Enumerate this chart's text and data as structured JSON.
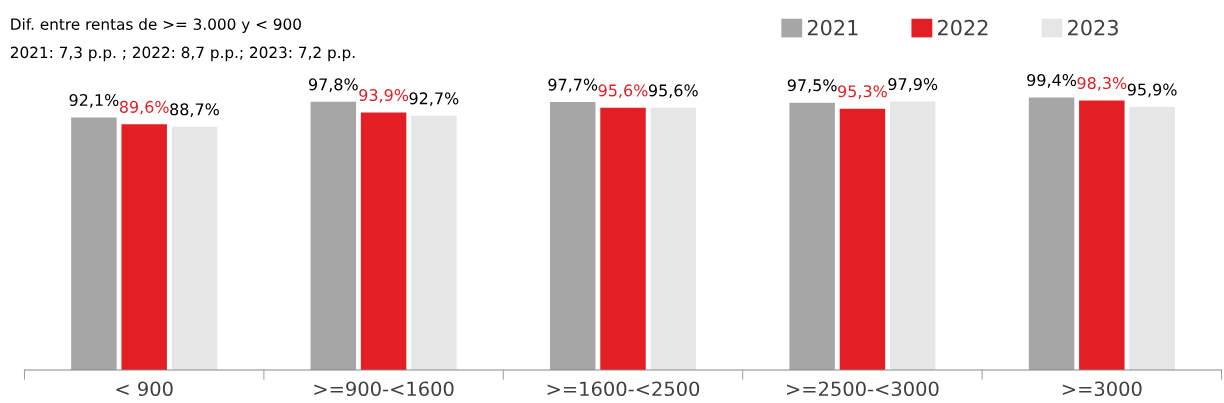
{
  "chart_data": {
    "type": "bar",
    "categories": [
      "< 900",
      ">=900-<1600",
      ">=1600-<2500",
      ">=2500-<3000",
      ">=3000"
    ],
    "series": [
      {
        "name": "2021",
        "color": "#a6a6a6",
        "values": [
          92.1,
          97.8,
          97.7,
          97.5,
          99.4
        ],
        "value_labels": [
          "92,1%",
          "97,8%",
          "97,7%",
          "97,5%",
          "99,4%"
        ]
      },
      {
        "name": "2022",
        "color": "#e31e24",
        "values": [
          89.6,
          93.9,
          95.6,
          95.3,
          98.3
        ],
        "value_labels": [
          "89,6%",
          "93,9%",
          "95,6%",
          "95,3%",
          "98,3%"
        ]
      },
      {
        "name": "2023",
        "color": "#e6e6e6",
        "values": [
          88.7,
          92.7,
          95.6,
          97.9,
          95.9
        ],
        "value_labels": [
          "88,7%",
          "92,7%",
          "95,6%",
          "97,9%",
          "95,9%"
        ]
      }
    ],
    "tick_labels": "x",
    "grid": false,
    "legend": "top right",
    "annotations": [
      "Dif. entre rentas de >= 3.000 y < 900",
      "2021: 7,3 p.p. ; 2022: 8,7 p.p.; 2023: 7,2 p.p."
    ]
  }
}
